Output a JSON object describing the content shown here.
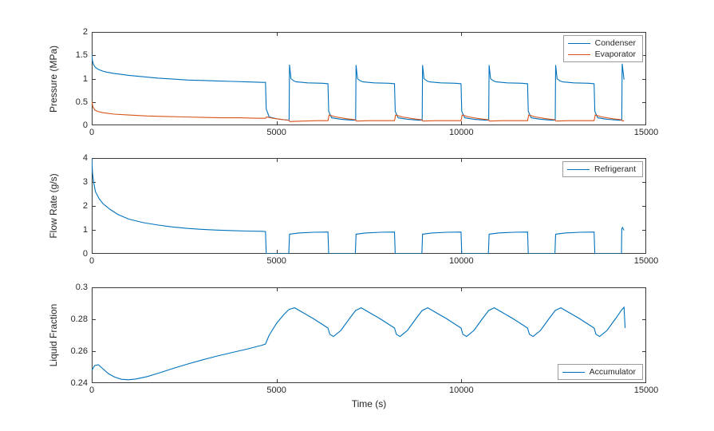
{
  "figure": {
    "background": "#ffffff",
    "axis_color": "#3b3b3b",
    "text_color": "#262626",
    "xlabel": "Time (s)"
  },
  "chart_data": [
    {
      "type": "line",
      "title": "",
      "ylabel": "Pressure (MPa)",
      "xlabel": "",
      "xlim": [
        0,
        15000
      ],
      "ylim": [
        0,
        2
      ],
      "xticks": [
        0,
        5000,
        10000,
        15000
      ],
      "xtick_labels": [
        "0",
        "5000",
        "10000",
        "15000"
      ],
      "yticks": [
        0,
        0.5,
        1,
        1.5,
        2
      ],
      "ytick_labels": [
        "0",
        "0.5",
        "1",
        "1.5",
        "2"
      ],
      "grid": false,
      "legend": {
        "position": "top-right"
      },
      "series": [
        {
          "name": "Condenser",
          "color": "#0072BD",
          "x": [
            0,
            20,
            50,
            100,
            150,
            200,
            300,
            400,
            600,
            800,
            1000,
            1400,
            1800,
            2200,
            2600,
            3000,
            3400,
            3800,
            4200,
            4600,
            4700,
            4720,
            4800,
            5000,
            5200,
            5330,
            5340,
            5350,
            5390,
            5470,
            5540,
            5840,
            6240,
            6390,
            6410,
            6490,
            6740,
            7040,
            7130,
            7140,
            7150,
            7190,
            7270,
            7340,
            7640,
            8040,
            8190,
            8210,
            8290,
            8540,
            8840,
            8930,
            8940,
            8950,
            8990,
            9070,
            9140,
            9440,
            9840,
            9990,
            10010,
            10090,
            10340,
            10640,
            10730,
            10740,
            10750,
            10790,
            10870,
            10940,
            11240,
            11640,
            11790,
            11810,
            11890,
            12140,
            12440,
            12530,
            12540,
            12550,
            12590,
            12670,
            12740,
            13040,
            13440,
            13590,
            13610,
            13690,
            13940,
            14240,
            14330,
            14340,
            14350,
            14390,
            14400
          ],
          "y": [
            1.52,
            1.38,
            1.3,
            1.24,
            1.21,
            1.19,
            1.16,
            1.14,
            1.11,
            1.09,
            1.07,
            1.04,
            1.01,
            0.99,
            0.97,
            0.96,
            0.95,
            0.94,
            0.93,
            0.92,
            0.92,
            0.35,
            0.18,
            0.14,
            0.12,
            0.11,
            0.11,
            1.3,
            1.0,
            0.95,
            0.93,
            0.91,
            0.9,
            0.89,
            0.3,
            0.16,
            0.13,
            0.11,
            0.11,
            0.11,
            1.29,
            1.0,
            0.95,
            0.93,
            0.91,
            0.9,
            0.89,
            0.3,
            0.16,
            0.13,
            0.11,
            0.11,
            0.11,
            1.29,
            1.0,
            0.95,
            0.93,
            0.91,
            0.9,
            0.89,
            0.3,
            0.16,
            0.13,
            0.11,
            0.11,
            0.11,
            1.29,
            1.0,
            0.95,
            0.93,
            0.91,
            0.9,
            0.89,
            0.3,
            0.16,
            0.13,
            0.11,
            0.11,
            0.11,
            1.29,
            1.0,
            0.95,
            0.93,
            0.91,
            0.9,
            0.89,
            0.3,
            0.16,
            0.13,
            0.11,
            0.11,
            0.11,
            1.32,
            1.05,
            0.98
          ]
        },
        {
          "name": "Evaporator",
          "color": "#D95319",
          "x": [
            0,
            30,
            80,
            150,
            300,
            600,
            1000,
            1500,
            2000,
            2500,
            3000,
            3500,
            4000,
            4500,
            4700,
            4730,
            4900,
            5200,
            5330,
            5360,
            5700,
            6100,
            6390,
            6420,
            6600,
            6900,
            7130,
            7160,
            7500,
            7900,
            8190,
            8220,
            8400,
            8700,
            8930,
            8960,
            9300,
            9700,
            9990,
            10020,
            10200,
            10500,
            10730,
            10760,
            11100,
            11500,
            11790,
            11820,
            12000,
            12300,
            12530,
            12560,
            12900,
            13300,
            13590,
            13620,
            13800,
            14100,
            14330,
            14360,
            14400
          ],
          "y": [
            0.52,
            0.4,
            0.33,
            0.3,
            0.27,
            0.24,
            0.22,
            0.2,
            0.19,
            0.18,
            0.17,
            0.16,
            0.16,
            0.15,
            0.15,
            0.18,
            0.15,
            0.12,
            0.11,
            0.08,
            0.09,
            0.1,
            0.1,
            0.22,
            0.18,
            0.14,
            0.12,
            0.09,
            0.1,
            0.1,
            0.1,
            0.22,
            0.18,
            0.14,
            0.12,
            0.09,
            0.1,
            0.1,
            0.1,
            0.22,
            0.18,
            0.14,
            0.12,
            0.09,
            0.1,
            0.1,
            0.1,
            0.22,
            0.18,
            0.14,
            0.12,
            0.09,
            0.1,
            0.1,
            0.1,
            0.22,
            0.18,
            0.14,
            0.12,
            0.09,
            0.1
          ]
        }
      ]
    },
    {
      "type": "line",
      "title": "",
      "ylabel": "Flow Rate (g/s)",
      "xlabel": "",
      "xlim": [
        0,
        15000
      ],
      "ylim": [
        0,
        4
      ],
      "xticks": [
        0,
        5000,
        10000,
        15000
      ],
      "xtick_labels": [
        "0",
        "5000",
        "10000",
        "15000"
      ],
      "yticks": [
        0,
        1,
        2,
        3,
        4
      ],
      "ytick_labels": [
        "0",
        "1",
        "2",
        "3",
        "4"
      ],
      "grid": false,
      "legend": {
        "position": "top-right"
      },
      "series": [
        {
          "name": "Refrigerant",
          "color": "#0072BD",
          "x": [
            0,
            20,
            50,
            100,
            200,
            300,
            500,
            700,
            1000,
            1400,
            1800,
            2200,
            2600,
            3000,
            3400,
            3800,
            4200,
            4600,
            4700,
            4720,
            5330,
            5350,
            5600,
            6000,
            6390,
            6410,
            7130,
            7150,
            7400,
            7800,
            8190,
            8210,
            8930,
            8950,
            9200,
            9600,
            9990,
            10010,
            10730,
            10750,
            11000,
            11400,
            11790,
            11810,
            12530,
            12550,
            12800,
            13200,
            13590,
            13610,
            14330,
            14340,
            14360,
            14400
          ],
          "y": [
            4.0,
            3.4,
            3.0,
            2.6,
            2.3,
            2.1,
            1.85,
            1.65,
            1.45,
            1.3,
            1.2,
            1.12,
            1.06,
            1.02,
            0.99,
            0.97,
            0.95,
            0.94,
            0.93,
            0.0,
            0.0,
            0.82,
            0.87,
            0.9,
            0.91,
            0.0,
            0.0,
            0.82,
            0.87,
            0.9,
            0.91,
            0.0,
            0.0,
            0.82,
            0.87,
            0.9,
            0.91,
            0.0,
            0.0,
            0.82,
            0.87,
            0.9,
            0.91,
            0.0,
            0.0,
            0.82,
            0.87,
            0.9,
            0.91,
            0.0,
            0.0,
            1.05,
            1.1,
            0.98
          ]
        }
      ]
    },
    {
      "type": "line",
      "title": "",
      "ylabel": "Liquid Fraction",
      "xlabel": "Time (s)",
      "xlim": [
        0,
        15000
      ],
      "ylim": [
        0.24,
        0.3
      ],
      "xticks": [
        0,
        5000,
        10000,
        15000
      ],
      "xtick_labels": [
        "0",
        "5000",
        "10000",
        "15000"
      ],
      "yticks": [
        0.24,
        0.26,
        0.28,
        0.3
      ],
      "ytick_labels": [
        "0.24",
        "0.26",
        "0.28",
        "0.3"
      ],
      "grid": false,
      "legend": {
        "position": "bottom-right"
      },
      "series": [
        {
          "name": "Accumulator",
          "color": "#0072BD",
          "x": [
            0,
            80,
            180,
            300,
            450,
            600,
            800,
            1000,
            1200,
            1500,
            1800,
            2200,
            2600,
            3000,
            3400,
            3800,
            4200,
            4600,
            4700,
            4800,
            5000,
            5200,
            5340,
            5490,
            5690,
            5990,
            6190,
            6390,
            6440,
            6540,
            6740,
            6990,
            7140,
            7290,
            7490,
            7790,
            7990,
            8190,
            8240,
            8340,
            8540,
            8790,
            8940,
            9090,
            9290,
            9590,
            9790,
            9990,
            10040,
            10140,
            10340,
            10590,
            10740,
            10890,
            11090,
            11390,
            11590,
            11790,
            11840,
            11940,
            12140,
            12390,
            12540,
            12690,
            12890,
            13190,
            13390,
            13590,
            13640,
            13740,
            13940,
            14190,
            14340,
            14400,
            14430
          ],
          "y": [
            0.248,
            0.251,
            0.2515,
            0.249,
            0.246,
            0.244,
            0.2424,
            0.2421,
            0.2426,
            0.2441,
            0.2462,
            0.2492,
            0.252,
            0.2546,
            0.257,
            0.2592,
            0.2613,
            0.2637,
            0.2645,
            0.27,
            0.2775,
            0.283,
            0.2862,
            0.2872,
            0.2845,
            0.2805,
            0.2775,
            0.2745,
            0.2706,
            0.2692,
            0.273,
            0.281,
            0.2855,
            0.2872,
            0.2845,
            0.2805,
            0.2775,
            0.2745,
            0.2706,
            0.2692,
            0.273,
            0.281,
            0.2855,
            0.2872,
            0.2845,
            0.2805,
            0.2775,
            0.2745,
            0.2706,
            0.2692,
            0.273,
            0.281,
            0.2855,
            0.2872,
            0.2845,
            0.2805,
            0.2775,
            0.2745,
            0.2706,
            0.2692,
            0.273,
            0.281,
            0.2855,
            0.2872,
            0.2845,
            0.2805,
            0.2775,
            0.2745,
            0.2706,
            0.2692,
            0.273,
            0.281,
            0.286,
            0.2875,
            0.2745
          ]
        }
      ]
    }
  ]
}
